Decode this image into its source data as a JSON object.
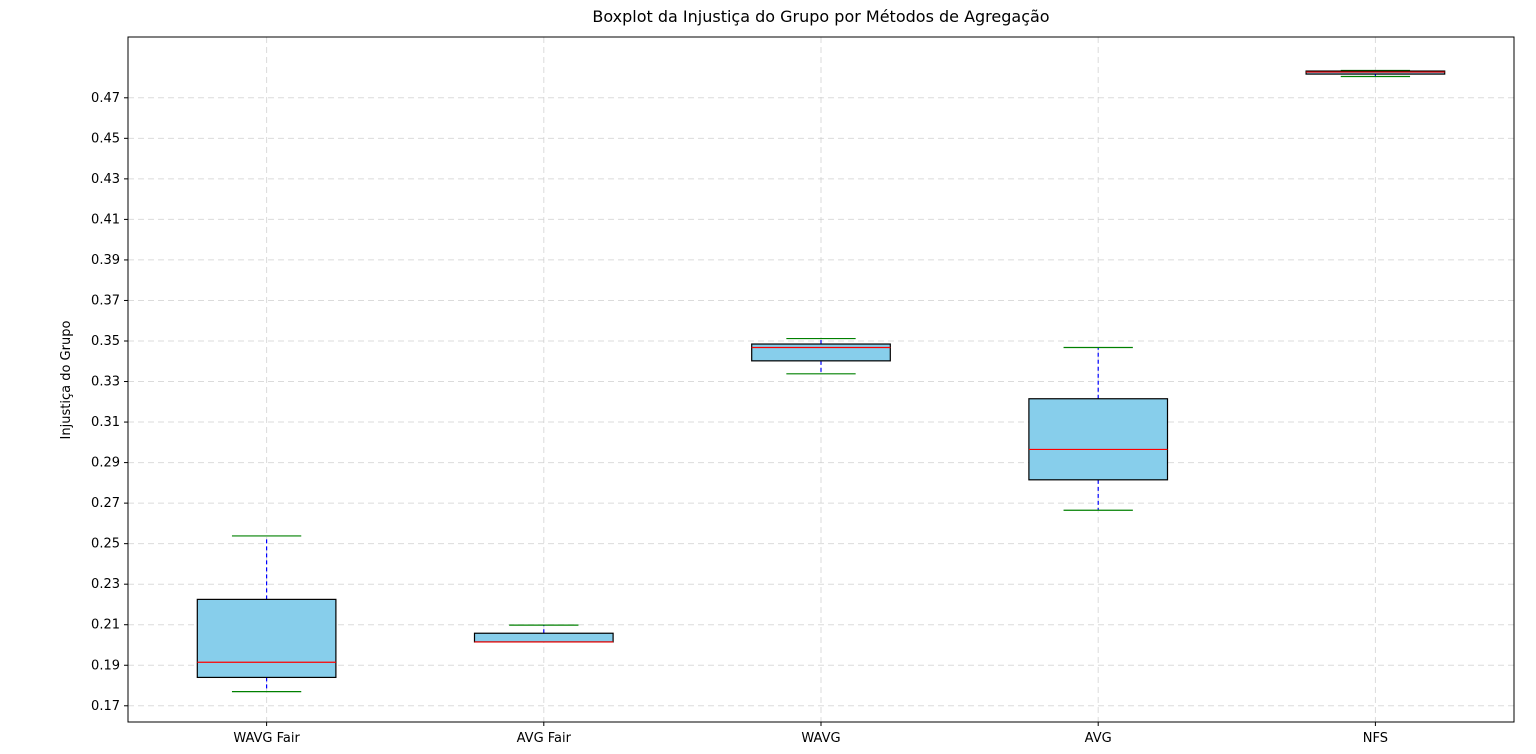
{
  "chart_data": {
    "type": "boxplot",
    "title": "Boxplot da Injustiça do Grupo por Métodos de Agregação",
    "xlabel": "",
    "ylabel": "Injustiça do Grupo",
    "ylim": [
      0.162,
      0.5
    ],
    "yticks": [
      "0.17",
      "0.19",
      "0.21",
      "0.23",
      "0.25",
      "0.27",
      "0.29",
      "0.31",
      "0.33",
      "0.35",
      "0.37",
      "0.39",
      "0.41",
      "0.43",
      "0.45",
      "0.47"
    ],
    "grid": true,
    "categories": [
      "WAVG Fair",
      "AVG Fair",
      "WAVG",
      "AVG",
      "NFS"
    ],
    "boxes": [
      {
        "whisker_low": 0.177,
        "q1": 0.184,
        "median": 0.1915,
        "q3": 0.2225,
        "whisker_high": 0.2538
      },
      {
        "whisker_low": 0.2015,
        "q1": 0.2015,
        "median": 0.2015,
        "q3": 0.2058,
        "whisker_high": 0.2098
      },
      {
        "whisker_low": 0.3338,
        "q1": 0.3402,
        "median": 0.3468,
        "q3": 0.3485,
        "whisker_high": 0.3512
      },
      {
        "whisker_low": 0.2665,
        "q1": 0.2815,
        "median": 0.2965,
        "q3": 0.3215,
        "whisker_high": 0.3468
      },
      {
        "whisker_low": 0.4805,
        "q1": 0.4817,
        "median": 0.4827,
        "q3": 0.4832,
        "whisker_high": 0.4835
      }
    ],
    "colors": {
      "box_fill": "#87ceeb",
      "box_edge": "#000000",
      "median": "#ff0000",
      "whisker": "#0000ff",
      "cap": "#008000",
      "grid": "#cccccc"
    }
  }
}
